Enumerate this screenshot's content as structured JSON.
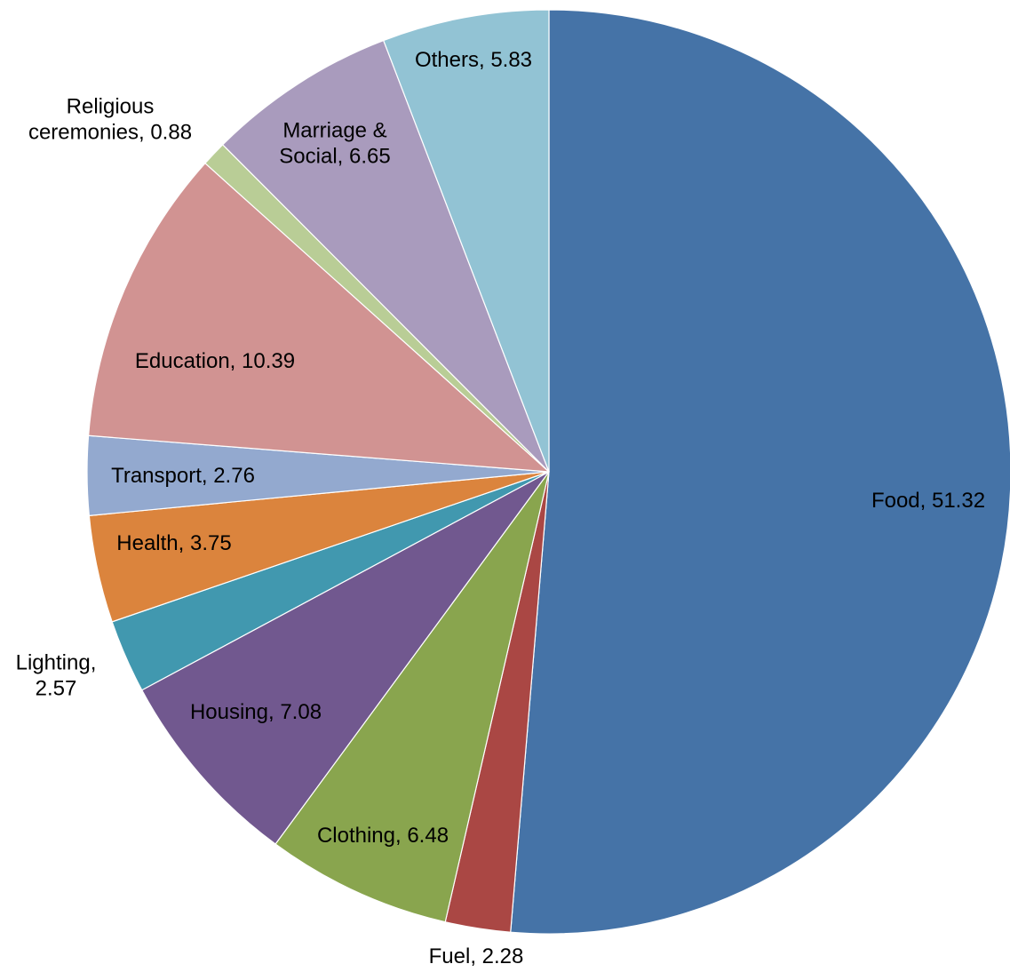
{
  "chart_data": {
    "type": "pie",
    "title": "",
    "start_angle_deg": 0,
    "direction": "clockwise",
    "legend": "none",
    "label_format": "category, value",
    "slices": [
      {
        "category": "Food",
        "value": 51.32,
        "label_lines": [
          "Food, 51.32"
        ],
        "color": "#4573a7"
      },
      {
        "category": "Fuel",
        "value": 2.28,
        "label_lines": [
          "Fuel, 2.28"
        ],
        "color": "#aa4744"
      },
      {
        "category": "Clothing",
        "value": 6.48,
        "label_lines": [
          "Clothing, 6.48"
        ],
        "color": "#89a54e"
      },
      {
        "category": "Housing",
        "value": 7.08,
        "label_lines": [
          "Housing, 7.08"
        ],
        "color": "#71588f"
      },
      {
        "category": "Lighting",
        "value": 2.57,
        "label_lines": [
          "Lighting,",
          "2.57"
        ],
        "color": "#4198af"
      },
      {
        "category": "Health",
        "value": 3.75,
        "label_lines": [
          "Health, 3.75"
        ],
        "color": "#db843d"
      },
      {
        "category": "Transport",
        "value": 2.76,
        "label_lines": [
          "Transport, 2.76"
        ],
        "color": "#93a9cf"
      },
      {
        "category": "Education",
        "value": 10.39,
        "label_lines": [
          "Education, 10.39"
        ],
        "color": "#d19392"
      },
      {
        "category": "Religious ceremonies",
        "value": 0.88,
        "label_lines": [
          "Religious",
          "ceremonies, 0.88"
        ],
        "color": "#b9cd96"
      },
      {
        "category": "Marriage & Social",
        "value": 6.65,
        "label_lines": [
          "Marriage &",
          "Social, 6.65"
        ],
        "color": "#a99bbd"
      },
      {
        "category": "Others",
        "value": 5.83,
        "label_lines": [
          "Others, 5.83"
        ],
        "color": "#92c3d4"
      }
    ]
  }
}
